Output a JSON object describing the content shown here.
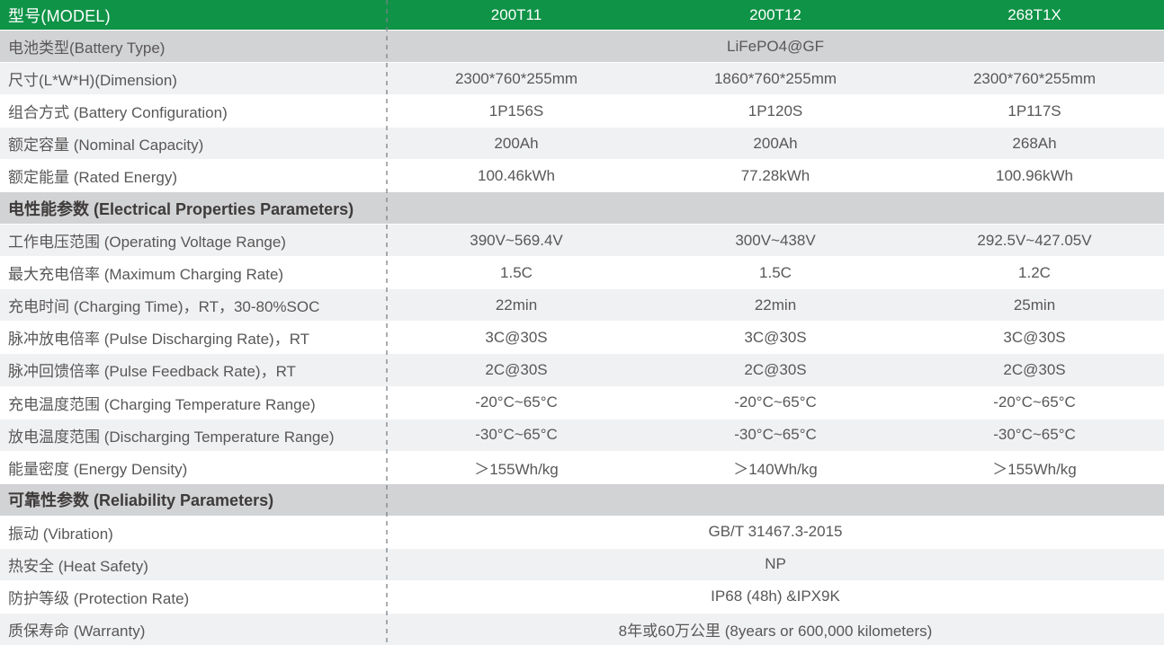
{
  "colors": {
    "header_green": "#0f9347",
    "section_gray": "#d2d3d5",
    "stripe_gray": "#f0f1f3",
    "row_white": "#ffffff",
    "text_gray": "#595757",
    "section_text": "#3e3b3a",
    "header_text": "#ffffff"
  },
  "header": {
    "label": "型号(MODEL)",
    "models": [
      "200T11",
      "200T12",
      "268T1X"
    ]
  },
  "rows": [
    {
      "type": "span",
      "bg": "medium",
      "label": "电池类型(Battery Type)",
      "value": "LiFePO4@GF"
    },
    {
      "type": "cells",
      "bg": "light",
      "label": "尺寸(L*W*H)(Dimension)",
      "values": [
        "2300*760*255mm",
        "1860*760*255mm",
        "2300*760*255mm"
      ]
    },
    {
      "type": "cells",
      "bg": "white",
      "label": "组合方式 (Battery Configuration)",
      "values": [
        "1P156S",
        "1P120S",
        "1P117S"
      ]
    },
    {
      "type": "cells",
      "bg": "light",
      "label": "额定容量 (Nominal Capacity)",
      "values": [
        "200Ah",
        "200Ah",
        "268Ah"
      ]
    },
    {
      "type": "cells",
      "bg": "white",
      "label": "额定能量 (Rated Energy)",
      "values": [
        "100.46kWh",
        "77.28kWh",
        "100.96kWh"
      ]
    },
    {
      "type": "section",
      "bg": "medium",
      "label": "电性能参数 (Electrical Properties Parameters)"
    },
    {
      "type": "cells",
      "bg": "light",
      "label": "工作电压范围 (Operating Voltage Range)",
      "values": [
        "390V~569.4V",
        "300V~438V",
        "292.5V~427.05V"
      ]
    },
    {
      "type": "cells",
      "bg": "white",
      "label": "最大充电倍率 (Maximum Charging Rate)",
      "values": [
        "1.5C",
        "1.5C",
        "1.2C"
      ]
    },
    {
      "type": "cells",
      "bg": "light",
      "label": "充电时间 (Charging Time)，RT，30-80%SOC",
      "values": [
        "22min",
        "22min",
        "25min"
      ]
    },
    {
      "type": "cells",
      "bg": "white",
      "label": "脉冲放电倍率 (Pulse Discharging Rate)，RT",
      "values": [
        "3C@30S",
        "3C@30S",
        "3C@30S"
      ]
    },
    {
      "type": "cells",
      "bg": "light",
      "label": "脉冲回馈倍率 (Pulse Feedback Rate)，RT",
      "values": [
        "2C@30S",
        "2C@30S",
        "2C@30S"
      ]
    },
    {
      "type": "cells",
      "bg": "white",
      "label": "充电温度范围 (Charging Temperature Range)",
      "values": [
        "-20°C~65°C",
        "-20°C~65°C",
        "-20°C~65°C"
      ]
    },
    {
      "type": "cells",
      "bg": "light",
      "label": "放电温度范围 (Discharging Temperature Range)",
      "values": [
        "-30°C~65°C",
        "-30°C~65°C",
        "-30°C~65°C"
      ]
    },
    {
      "type": "cells",
      "bg": "white",
      "label": "能量密度 (Energy Density)",
      "values": [
        "＞155Wh/kg",
        "＞140Wh/kg",
        "＞155Wh/kg"
      ]
    },
    {
      "type": "section",
      "bg": "medium",
      "label": "可靠性参数 (Reliability Parameters)"
    },
    {
      "type": "span",
      "bg": "white",
      "label": "振动 (Vibration)",
      "value": "GB/T 31467.3-2015"
    },
    {
      "type": "span",
      "bg": "light",
      "label": "热安全 (Heat Safety)",
      "value": "NP"
    },
    {
      "type": "span",
      "bg": "white",
      "label": "防护等级 (Protection Rate)",
      "value": "IP68 (48h) &IPX9K"
    },
    {
      "type": "span",
      "bg": "light",
      "label": "质保寿命 (Warranty)",
      "value": "8年或60万公里 (8years or 600,000 kilometers)"
    }
  ]
}
